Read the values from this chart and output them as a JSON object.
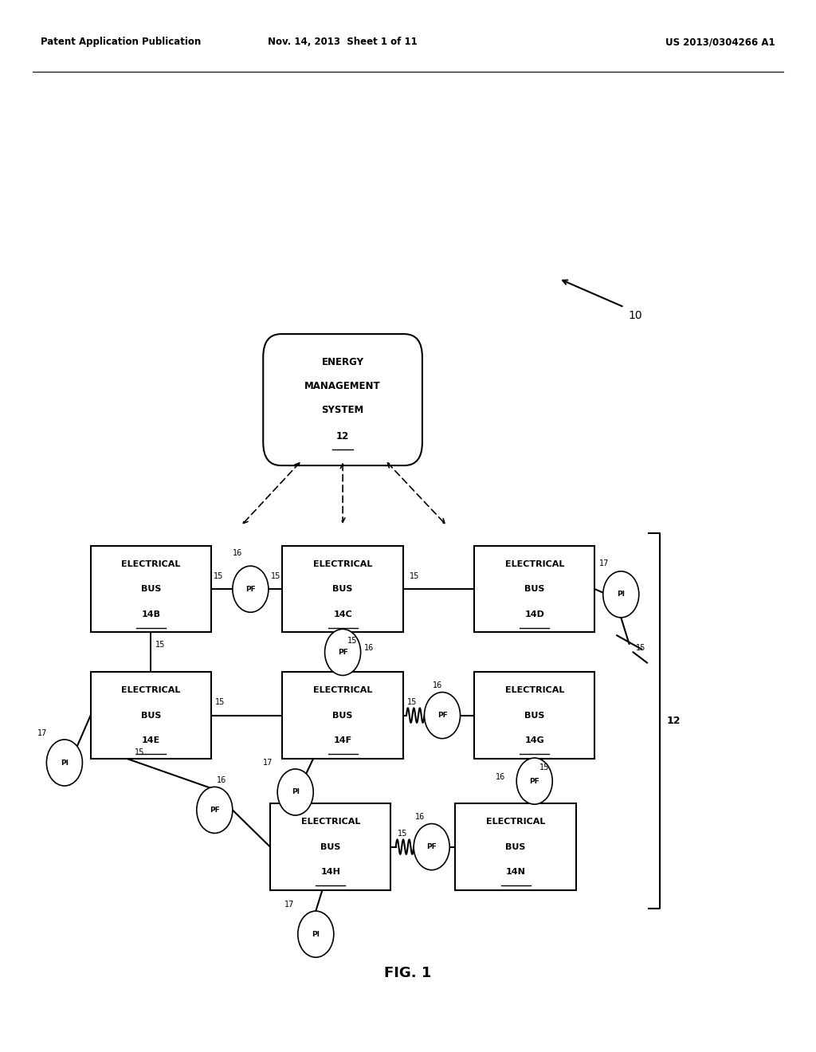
{
  "header_left": "Patent Application Publication",
  "header_mid": "Nov. 14, 2013  Sheet 1 of 11",
  "header_right": "US 2013/0304266 A1",
  "fig_label": "FIG. 1",
  "bg_color": "#ffffff"
}
